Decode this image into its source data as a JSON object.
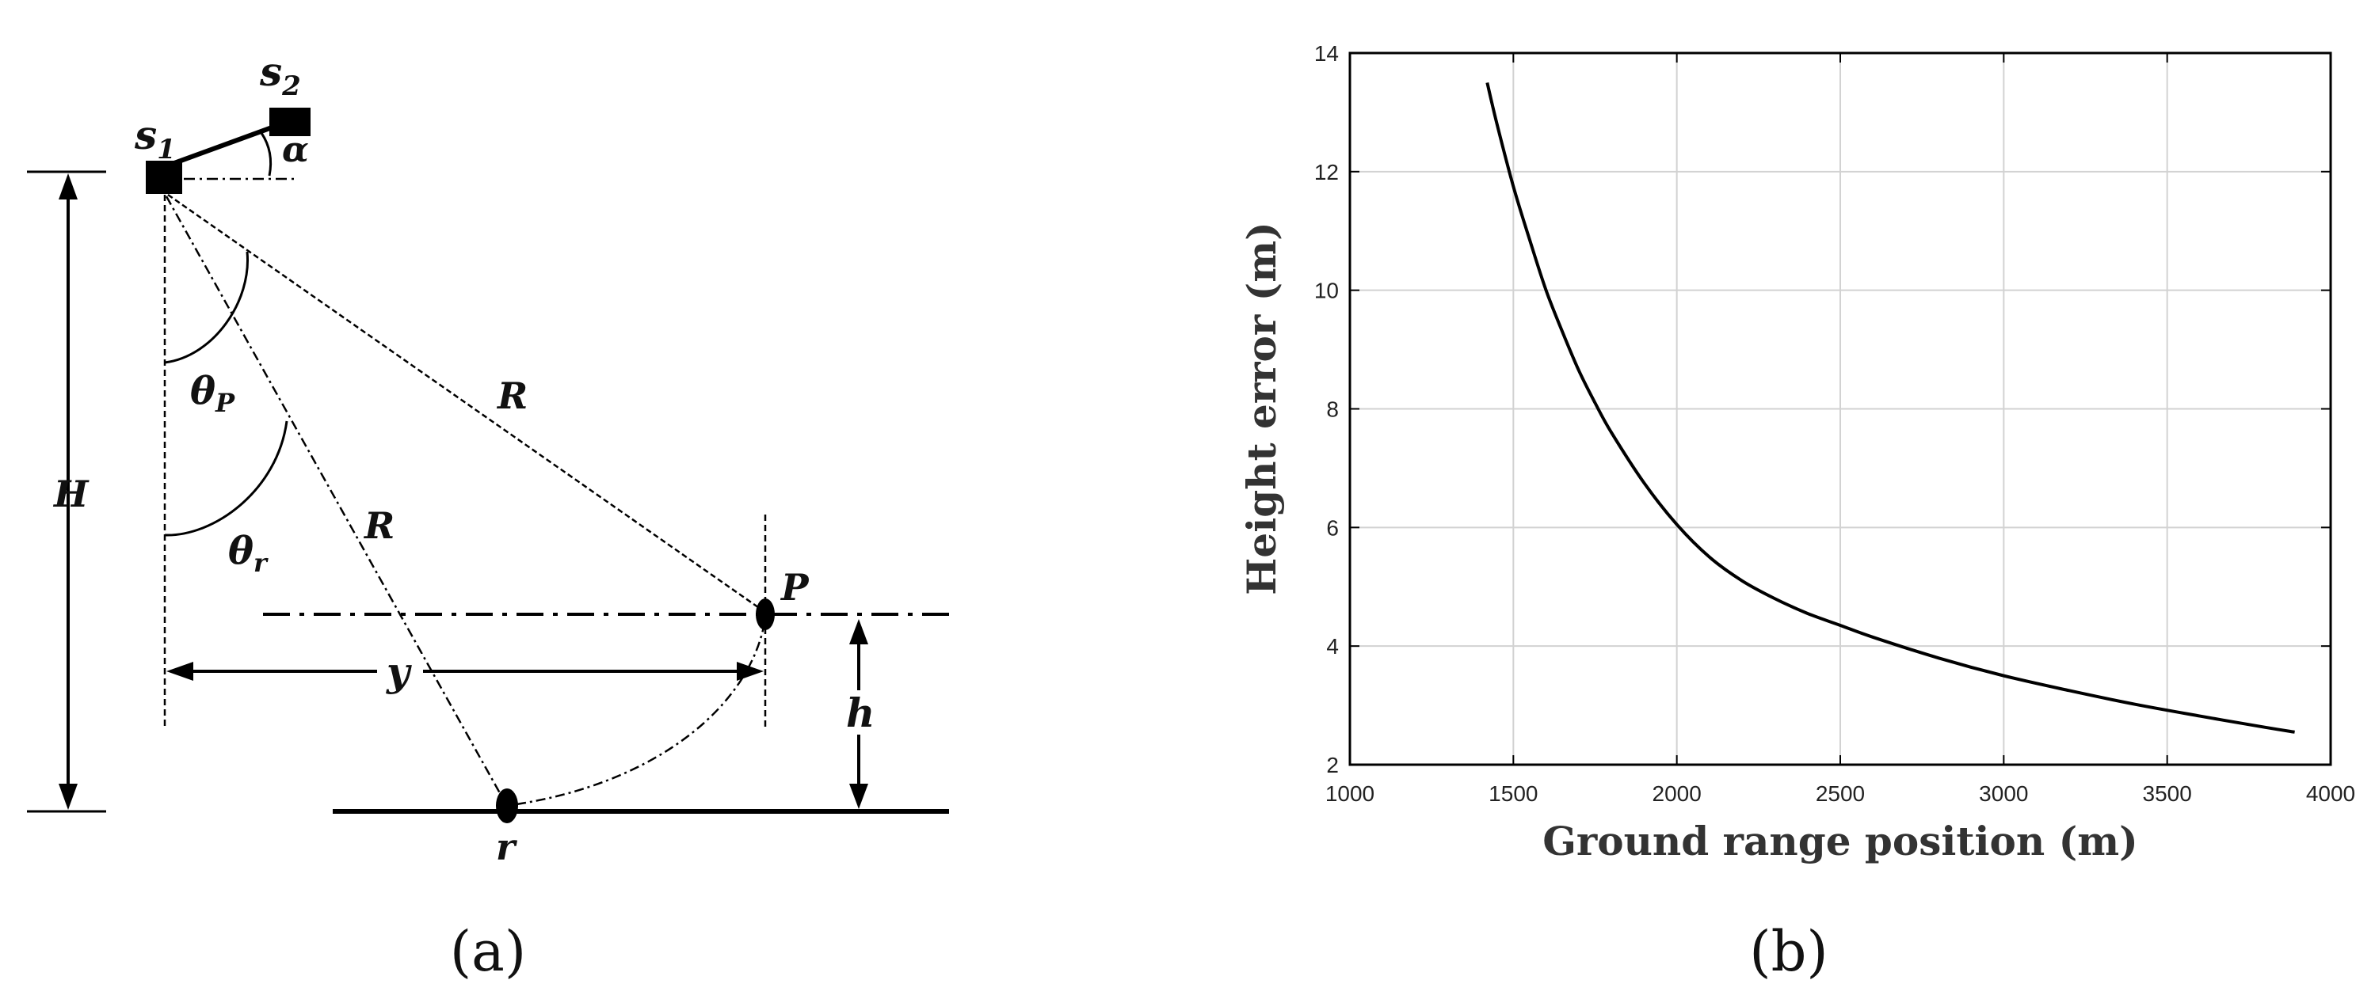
{
  "figure": {
    "panel_a_label": "(a)",
    "panel_b_label": "(b)"
  },
  "diagram": {
    "labels": {
      "s1": "s",
      "s1_sub": "1",
      "s2": "s",
      "s2_sub": "2",
      "alpha": "α",
      "H": "H",
      "theta_p": "θ",
      "theta_p_sub": "P",
      "theta_r": "θ",
      "theta_r_sub": "r",
      "R_upper": "R",
      "R_lower": "R",
      "P": "P",
      "y": "y",
      "h": "h",
      "r": "r"
    }
  },
  "chart_data": {
    "type": "line",
    "title": "",
    "xlabel": "Ground range position (m)",
    "ylabel": "Height error (m)",
    "xlim": [
      1000,
      4000
    ],
    "ylim": [
      2,
      14
    ],
    "xticks": [
      1000,
      1500,
      2000,
      2500,
      3000,
      3500,
      4000
    ],
    "yticks": [
      2,
      4,
      6,
      8,
      10,
      12,
      14
    ],
    "grid": true,
    "series": [
      {
        "color": "#000000",
        "x": [
          1420,
          1450,
          1500,
          1550,
          1600,
          1650,
          1700,
          1750,
          1800,
          1900,
          2000,
          2100,
          2200,
          2300,
          2400,
          2500,
          2600,
          2800,
          3000,
          3200,
          3400,
          3600,
          3800,
          3890
        ],
        "y": [
          13.5,
          12.8,
          11.75,
          10.85,
          10.0,
          9.3,
          8.65,
          8.1,
          7.6,
          6.75,
          6.05,
          5.5,
          5.1,
          4.8,
          4.55,
          4.35,
          4.15,
          3.8,
          3.5,
          3.25,
          3.02,
          2.82,
          2.63,
          2.55
        ]
      }
    ]
  }
}
